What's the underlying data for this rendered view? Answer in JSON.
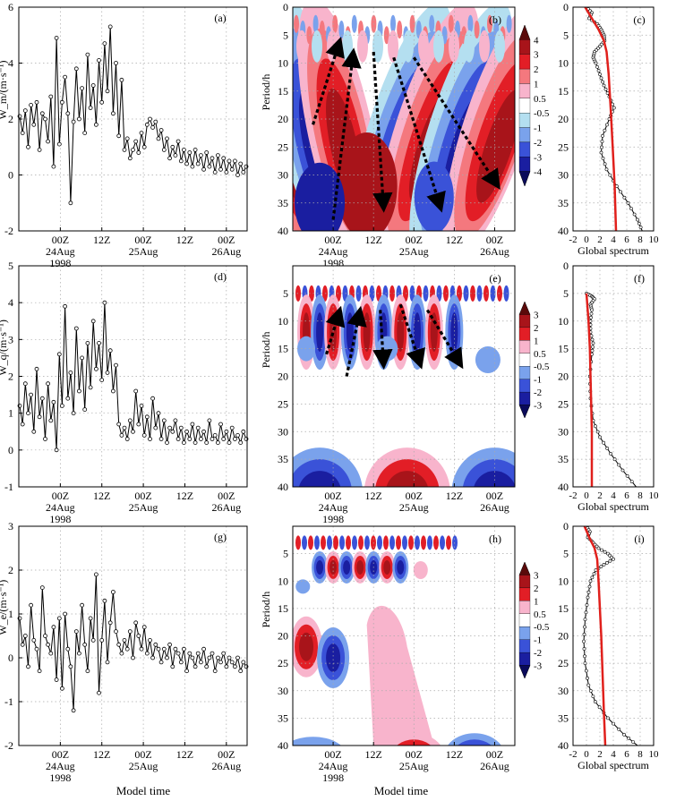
{
  "figure": {
    "xlabel": "Model time",
    "ylabel_period": "Period/h",
    "xlabel_spectrum": "Global spectrum",
    "date_ticks": [
      "00Z",
      "12Z",
      "00Z",
      "12Z",
      "00Z"
    ],
    "date_labels": [
      "24Aug",
      "25Aug",
      "26Aug"
    ],
    "year_label": "1998"
  },
  "colors": {
    "data_line": "#000000",
    "power_curve": "#000000",
    "significance_curve": "#e0201c",
    "arrow": "#000000"
  },
  "chart_data": [
    {
      "panel": "a",
      "type": "line",
      "label": "(a)",
      "ylabel": "W_m/(m·s⁻¹)",
      "ylim": [
        -2,
        6
      ],
      "yticks": [
        -2,
        0,
        2,
        4,
        6
      ],
      "x_range_hours": [
        "23Aug 12Z",
        "26Aug 06Z"
      ],
      "series": [
        {
          "values": [
            2.1,
            1.5,
            2.3,
            1.0,
            2.5,
            1.8,
            2.6,
            0.9,
            2.2,
            2.0,
            1.2,
            2.8,
            0.3,
            4.9,
            1.1,
            2.6,
            3.5,
            2.2,
            -1.0,
            1.9,
            3.8,
            2.0,
            3.1,
            1.5,
            4.3,
            2.4,
            3.2,
            1.8,
            4.1,
            2.6,
            4.7,
            3.0,
            5.3,
            2.2,
            4.0,
            1.4,
            3.4,
            0.9,
            1.3,
            0.6,
            0.9,
            1.2,
            0.8,
            1.5,
            1.0,
            1.8,
            2.0,
            1.7,
            1.9,
            1.3,
            1.6,
            0.9,
            1.3,
            0.6,
            1.0,
            0.7,
            1.2,
            0.5,
            0.9,
            0.4,
            0.8,
            0.3,
            0.9,
            0.4,
            0.7,
            0.2,
            0.8,
            0.3,
            0.6,
            0.1,
            0.7,
            0.2,
            0.6,
            0.1,
            0.5,
            0.2,
            0.5,
            0.0,
            0.4,
            0.1,
            0.3
          ]
        }
      ]
    },
    {
      "panel": "b",
      "type": "heatmap",
      "label": "(b)",
      "ylabel": "Period/h",
      "ylim": [
        0,
        40
      ],
      "yticks": [
        0,
        5,
        10,
        15,
        20,
        25,
        30,
        35,
        40
      ],
      "colorbar_ticks": [
        "4",
        "3",
        "2",
        "1",
        "0.5",
        "-0.5",
        "-1",
        "-2",
        "-3",
        "-4"
      ],
      "colorbar_colors": [
        "#5a0a0a",
        "#a8141a",
        "#e21e26",
        "#f4787e",
        "#f8b4cc",
        "#ffffff",
        "#b4dff0",
        "#7aa2ec",
        "#3a52d8",
        "#1a1ea0",
        "#0a0a5a"
      ],
      "arrows_count": 5
    },
    {
      "panel": "c",
      "type": "line",
      "label": "(c)",
      "xlabel": "Global spectrum",
      "xlim": [
        -2,
        10
      ],
      "xticks": [
        -2,
        0,
        2,
        4,
        6,
        8,
        10
      ],
      "ylim": [
        0,
        40
      ],
      "series": [
        {
          "role": "power",
          "points": [
            [
              0.0,
              0
            ],
            [
              0.8,
              1
            ],
            [
              0.4,
              2
            ],
            [
              1.6,
              3
            ],
            [
              2.2,
              4
            ],
            [
              2.6,
              5
            ],
            [
              2.7,
              6
            ],
            [
              2.0,
              7
            ],
            [
              1.2,
              8
            ],
            [
              1.0,
              9
            ],
            [
              1.4,
              10
            ],
            [
              2.0,
              12
            ],
            [
              2.6,
              14
            ],
            [
              3.4,
              16
            ],
            [
              4.1,
              18
            ],
            [
              3.4,
              20
            ],
            [
              2.4,
              23
            ],
            [
              2.2,
              26
            ],
            [
              3.0,
              29
            ],
            [
              4.5,
              32
            ],
            [
              6.2,
              35
            ],
            [
              7.6,
              38
            ],
            [
              8.3,
              40
            ]
          ]
        },
        {
          "role": "significance",
          "points": [
            [
              -0.2,
              0
            ],
            [
              0.8,
              2
            ],
            [
              1.8,
              4
            ],
            [
              2.6,
              6
            ],
            [
              3.0,
              8
            ],
            [
              3.3,
              12
            ],
            [
              3.6,
              18
            ],
            [
              3.9,
              25
            ],
            [
              4.2,
              32
            ],
            [
              4.4,
              40
            ]
          ]
        }
      ]
    },
    {
      "panel": "d",
      "type": "line",
      "label": "(d)",
      "ylabel": "W_q/(m·s⁻¹)",
      "ylim": [
        -1,
        5
      ],
      "yticks": [
        -1,
        0,
        1,
        2,
        3,
        4,
        5
      ],
      "series": [
        {
          "values": [
            1.2,
            0.7,
            1.8,
            1.0,
            1.5,
            0.5,
            2.2,
            0.9,
            1.4,
            0.3,
            1.8,
            0.8,
            1.3,
            0.0,
            2.6,
            1.2,
            3.9,
            1.4,
            2.1,
            1.0,
            3.3,
            1.6,
            2.5,
            1.1,
            2.9,
            1.7,
            3.5,
            2.2,
            2.9,
            1.9,
            4.0,
            2.1,
            2.7,
            1.6,
            2.3,
            0.7,
            0.4,
            0.6,
            0.3,
            0.8,
            0.5,
            1.6,
            0.7,
            1.2,
            0.4,
            0.9,
            0.3,
            1.4,
            0.6,
            1.0,
            0.3,
            0.8,
            0.2,
            0.6,
            0.5,
            0.8,
            0.3,
            0.6,
            0.2,
            0.5,
            0.3,
            0.7,
            0.2,
            0.6,
            0.3,
            0.5,
            0.2,
            0.8,
            0.3,
            0.4,
            0.2,
            0.7,
            0.3,
            0.5,
            0.2,
            0.6,
            0.3,
            0.4,
            0.2,
            0.5,
            0.3
          ]
        }
      ]
    },
    {
      "panel": "e",
      "type": "heatmap",
      "label": "(e)",
      "ylabel": "Period/h",
      "ylim": [
        0,
        40
      ],
      "yticks": [
        5,
        10,
        15,
        20,
        25,
        30,
        35,
        40
      ],
      "colorbar_ticks": [
        "3",
        "2",
        "1",
        "0.5",
        "-0.5",
        "-1",
        "-2",
        "-3"
      ],
      "colorbar_colors": [
        "#5a0a0a",
        "#a8141a",
        "#e21e26",
        "#f8b4cc",
        "#ffffff",
        "#7aa2ec",
        "#3a52d8",
        "#1a1ea0",
        "#0a0a5a"
      ],
      "arrows_count": 5
    },
    {
      "panel": "f",
      "type": "line",
      "label": "(f)",
      "xlabel": "Global spectrum",
      "xlim": [
        -2,
        10
      ],
      "xticks": [
        -2,
        0,
        2,
        4,
        6,
        8,
        10
      ],
      "ylim": [
        0,
        40
      ],
      "series": [
        {
          "role": "power",
          "points": [
            [
              0.0,
              5
            ],
            [
              0.8,
              5.5
            ],
            [
              1.2,
              6
            ],
            [
              0.6,
              7
            ],
            [
              0.8,
              8
            ],
            [
              0.6,
              10
            ],
            [
              0.6,
              12
            ],
            [
              1.0,
              14
            ],
            [
              0.8,
              16
            ],
            [
              0.5,
              20
            ],
            [
              0.6,
              24
            ],
            [
              1.0,
              28
            ],
            [
              2.0,
              31
            ],
            [
              3.6,
              34
            ],
            [
              5.4,
              37
            ],
            [
              7.4,
              40
            ]
          ]
        },
        {
          "role": "significance",
          "points": [
            [
              0.0,
              5
            ],
            [
              0.3,
              10
            ],
            [
              0.5,
              15
            ],
            [
              0.6,
              20
            ],
            [
              0.7,
              25
            ],
            [
              0.8,
              30
            ],
            [
              0.8,
              35
            ],
            [
              0.8,
              40
            ]
          ]
        }
      ]
    },
    {
      "panel": "g",
      "type": "line",
      "label": "(g)",
      "ylabel": "W_e/(m·s⁻¹)",
      "ylim": [
        -2,
        3
      ],
      "yticks": [
        -2,
        -1,
        0,
        1,
        2,
        3
      ],
      "series": [
        {
          "values": [
            0.9,
            0.3,
            0.5,
            -0.2,
            1.2,
            0.4,
            0.2,
            -0.3,
            1.6,
            0.5,
            0.3,
            0.1,
            0.7,
            -0.5,
            0.9,
            -0.7,
            1.0,
            0.2,
            -0.2,
            -1.2,
            0.6,
            0.1,
            1.2,
            0.3,
            -0.3,
            0.9,
            0.4,
            1.9,
            -0.8,
            0.4,
            1.3,
            -0.1,
            0.8,
            1.5,
            0.6,
            0.3,
            0.1,
            0.4,
            0.2,
            0.6,
            0.0,
            0.8,
            0.5,
            0.2,
            0.7,
            0.1,
            0.4,
            0.0,
            0.3,
            0.2,
            -0.1,
            0.2,
            0.0,
            0.3,
            -0.2,
            0.2,
            0.1,
            -0.1,
            0.2,
            -0.3,
            0.1,
            0.0,
            -0.2,
            0.1,
            -0.1,
            0.2,
            -0.2,
            0.0,
            0.1,
            -0.3,
            0.0,
            -0.1,
            0.1,
            -0.2,
            0.0,
            -0.1,
            -0.2,
            0.0,
            -0.3,
            -0.1,
            -0.2
          ]
        }
      ]
    },
    {
      "panel": "h",
      "type": "heatmap",
      "label": "(h)",
      "ylabel": "Period/h",
      "ylim": [
        0,
        40
      ],
      "yticks": [
        5,
        10,
        15,
        20,
        25,
        30,
        35,
        40
      ],
      "colorbar_ticks": [
        "3",
        "2",
        "1",
        "0.5",
        "-0.5",
        "-1",
        "-2",
        "-3"
      ],
      "colorbar_colors": [
        "#5a0a0a",
        "#a8141a",
        "#e21e26",
        "#f8b4cc",
        "#ffffff",
        "#7aa2ec",
        "#3a52d8",
        "#1a1ea0",
        "#0a0a5a"
      ]
    },
    {
      "panel": "i",
      "type": "line",
      "label": "(i)",
      "xlabel": "Global spectrum",
      "xlim": [
        -2,
        10
      ],
      "xticks": [
        -2,
        0,
        2,
        4,
        6,
        8,
        10
      ],
      "ylim": [
        0,
        40
      ],
      "series": [
        {
          "role": "power",
          "points": [
            [
              0.0,
              0
            ],
            [
              0.5,
              1
            ],
            [
              0.2,
              2
            ],
            [
              1.0,
              3
            ],
            [
              1.8,
              4
            ],
            [
              3.2,
              5
            ],
            [
              4.0,
              6
            ],
            [
              2.6,
              7
            ],
            [
              1.4,
              8
            ],
            [
              0.6,
              10
            ],
            [
              0.2,
              13
            ],
            [
              -0.2,
              17
            ],
            [
              -0.4,
              21
            ],
            [
              -0.2,
              25
            ],
            [
              0.3,
              29
            ],
            [
              1.3,
              32
            ],
            [
              3.2,
              35
            ],
            [
              5.6,
              38
            ],
            [
              7.6,
              40
            ]
          ]
        },
        {
          "role": "significance",
          "points": [
            [
              -0.3,
              0
            ],
            [
              0.4,
              2
            ],
            [
              1.2,
              4
            ],
            [
              1.6,
              6
            ],
            [
              1.8,
              10
            ],
            [
              2.0,
              15
            ],
            [
              2.2,
              20
            ],
            [
              2.4,
              27
            ],
            [
              2.6,
              34
            ],
            [
              2.8,
              40
            ]
          ]
        }
      ]
    }
  ]
}
